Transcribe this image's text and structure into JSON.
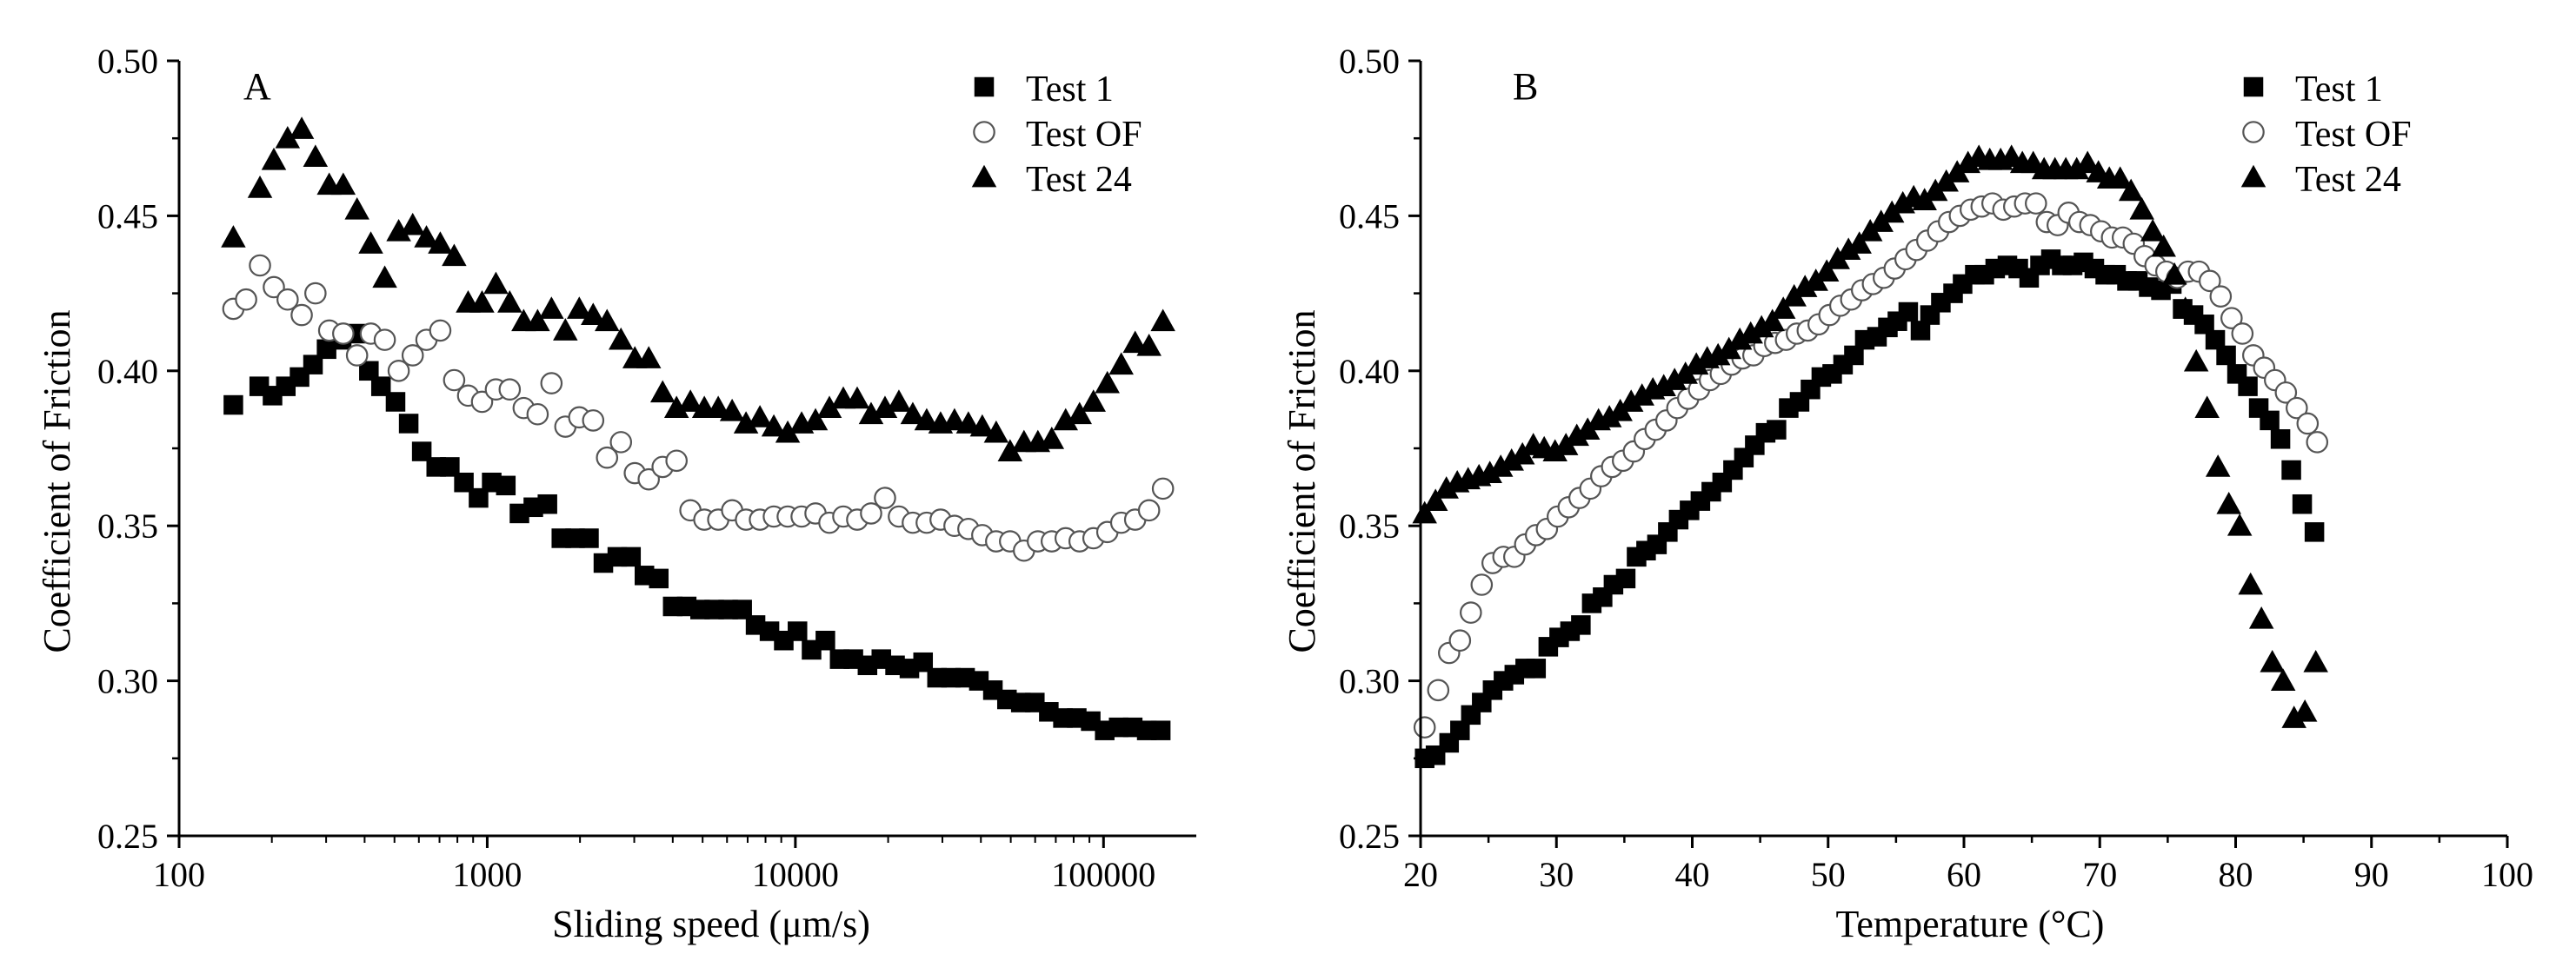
{
  "figure": {
    "panels": [
      "A",
      "B"
    ]
  },
  "chart_data": [
    {
      "panel": "A",
      "type": "scatter",
      "title": "",
      "xlabel": "Sliding speed (μm/s)",
      "ylabel": "Coefficient of Friction",
      "xscale": "log",
      "xlim": [
        100,
        200000
      ],
      "ylim": [
        0.25,
        0.5
      ],
      "xticks": [
        100,
        1000,
        10000,
        100000
      ],
      "xtick_labels": [
        "100",
        "1000",
        "10000",
        "100000"
      ],
      "yticks": [
        0.25,
        0.3,
        0.35,
        0.4,
        0.45,
        0.5
      ],
      "ytick_labels": [
        "0.25",
        "0.30",
        "0.35",
        "0.40",
        "0.45",
        "0.50"
      ],
      "legend_position": "top-right",
      "series": [
        {
          "name": "Test 1",
          "marker": "square-filled",
          "x": [
            150,
            182,
            201,
            222,
            246,
            272,
            301,
            337,
            376,
            413,
            452,
            504,
            556,
            613,
            683,
            756,
            840,
            937,
            1034,
            1149,
            1272,
            1411,
            1568,
            1740,
            1928,
            2139,
            2382,
            2643,
            2928,
            3237,
            3603,
            3999,
            4439,
            4906,
            5452,
            6052,
            6720,
            7426,
            8241,
            9169,
            10158,
            11285,
            12512,
            13922,
            15426,
            17139,
            19007,
            21065,
            23449,
            25970,
            28817,
            31976,
            35549,
            39393,
            43749,
            48599,
            53897,
            59852,
            66445,
            73838,
            81869,
            90891,
            100907,
            111978,
            124374,
            138115,
            153348
          ],
          "y": [
            0.389,
            0.395,
            0.392,
            0.395,
            0.398,
            0.402,
            0.407,
            0.41,
            0.412,
            0.4,
            0.395,
            0.39,
            0.383,
            0.374,
            0.369,
            0.369,
            0.364,
            0.359,
            0.364,
            0.363,
            0.354,
            0.356,
            0.357,
            0.346,
            0.346,
            0.346,
            0.338,
            0.34,
            0.34,
            0.334,
            0.333,
            0.324,
            0.324,
            0.323,
            0.323,
            0.323,
            0.323,
            0.318,
            0.316,
            0.313,
            0.316,
            0.31,
            0.313,
            0.307,
            0.307,
            0.305,
            0.307,
            0.305,
            0.304,
            0.306,
            0.301,
            0.301,
            0.301,
            0.3,
            0.297,
            0.294,
            0.293,
            0.293,
            0.29,
            0.288,
            0.288,
            0.287,
            0.284,
            0.285,
            0.285,
            0.284,
            0.284
          ]
        },
        {
          "name": "Test OF",
          "marker": "circle-open",
          "x": [
            150,
            165,
            183,
            203,
            225,
            250,
            277,
            307,
            341,
            378,
            419,
            465,
            516,
            573,
            635,
            704,
            781,
            867,
            962,
            1067,
            1183,
            1313,
            1457,
            1616,
            1793,
            1989,
            2207,
            2448,
            2716,
            3013,
            3343,
            3709,
            4115,
            4565,
            5065,
            5619,
            6234,
            6916,
            7673,
            8513,
            9444,
            10478,
            11624,
            12896,
            14308,
            15873,
            17610,
            19537,
            21675,
            24048,
            26679,
            29598,
            32837,
            36431,
            40418,
            44841,
            49748,
            55192,
            61232,
            67933,
            75367,
            83614,
            92764,
            102916,
            114178,
            126673,
            140535,
            155914
          ],
          "y": [
            0.42,
            0.423,
            0.434,
            0.427,
            0.423,
            0.418,
            0.425,
            0.413,
            0.412,
            0.405,
            0.412,
            0.41,
            0.4,
            0.405,
            0.41,
            0.413,
            0.397,
            0.392,
            0.39,
            0.394,
            0.394,
            0.388,
            0.386,
            0.396,
            0.382,
            0.385,
            0.384,
            0.372,
            0.377,
            0.367,
            0.365,
            0.369,
            0.371,
            0.355,
            0.352,
            0.352,
            0.355,
            0.352,
            0.352,
            0.353,
            0.353,
            0.353,
            0.354,
            0.351,
            0.353,
            0.352,
            0.354,
            0.359,
            0.353,
            0.351,
            0.351,
            0.352,
            0.35,
            0.349,
            0.347,
            0.345,
            0.345,
            0.342,
            0.345,
            0.345,
            0.346,
            0.345,
            0.346,
            0.348,
            0.351,
            0.352,
            0.355,
            0.362
          ]
        },
        {
          "name": "Test 24",
          "marker": "triangle-filled",
          "x": [
            150,
            183,
            203,
            225,
            250,
            277,
            307,
            341,
            378,
            419,
            465,
            516,
            573,
            635,
            704,
            781,
            867,
            962,
            1067,
            1183,
            1313,
            1457,
            1616,
            1793,
            1989,
            2207,
            2448,
            2716,
            3013,
            3343,
            3709,
            4115,
            4565,
            5065,
            5619,
            6234,
            6916,
            7673,
            8513,
            9444,
            10478,
            11624,
            12896,
            14308,
            15873,
            17610,
            19537,
            21675,
            24048,
            26679,
            29598,
            32837,
            36431,
            40418,
            44841,
            49748,
            55192,
            61232,
            67933,
            75367,
            83614,
            92764,
            102916,
            114178,
            126673,
            140535,
            155914
          ],
          "y": [
            0.443,
            0.459,
            0.468,
            0.475,
            0.478,
            0.469,
            0.46,
            0.46,
            0.452,
            0.441,
            0.43,
            0.445,
            0.447,
            0.443,
            0.441,
            0.437,
            0.422,
            0.422,
            0.428,
            0.422,
            0.416,
            0.416,
            0.42,
            0.413,
            0.42,
            0.418,
            0.416,
            0.41,
            0.404,
            0.404,
            0.393,
            0.388,
            0.39,
            0.388,
            0.388,
            0.387,
            0.383,
            0.385,
            0.382,
            0.38,
            0.383,
            0.384,
            0.388,
            0.391,
            0.391,
            0.386,
            0.388,
            0.39,
            0.386,
            0.384,
            0.383,
            0.384,
            0.383,
            0.382,
            0.38,
            0.374,
            0.377,
            0.377,
            0.378,
            0.384,
            0.386,
            0.39,
            0.396,
            0.402,
            0.409,
            0.408,
            0.416
          ]
        }
      ]
    },
    {
      "panel": "B",
      "type": "scatter",
      "title": "",
      "xlabel": "Temperature (°C)",
      "ylabel": "Coefficient of Friction",
      "xscale": "linear",
      "xlim": [
        20,
        100
      ],
      "ylim": [
        0.25,
        0.5
      ],
      "xticks": [
        20,
        30,
        40,
        50,
        60,
        70,
        80,
        90,
        100
      ],
      "xtick_labels": [
        "20",
        "30",
        "40",
        "50",
        "60",
        "70",
        "80",
        "90",
        "100"
      ],
      "yticks": [
        0.25,
        0.3,
        0.35,
        0.4,
        0.45,
        0.5
      ],
      "ytick_labels": [
        "0.25",
        "0.30",
        "0.35",
        "0.40",
        "0.45",
        "0.50"
      ],
      "legend_position": "top-right",
      "series": [
        {
          "name": "Test 1",
          "marker": "square-filled",
          "x": [
            20.3,
            21.1,
            22.1,
            22.9,
            23.7,
            24.5,
            25.3,
            26.1,
            26.9,
            27.7,
            28.5,
            29.4,
            30.2,
            31.0,
            31.8,
            32.6,
            33.4,
            34.2,
            35.1,
            35.9,
            36.6,
            37.4,
            38.2,
            39.0,
            39.8,
            40.6,
            41.4,
            42.2,
            43.0,
            43.8,
            44.6,
            45.4,
            46.2,
            47.1,
            47.9,
            48.7,
            49.5,
            50.3,
            51.1,
            51.9,
            52.7,
            53.6,
            54.4,
            55.1,
            55.9,
            56.8,
            57.5,
            58.3,
            59.2,
            59.9,
            60.8,
            61.5,
            62.3,
            63.2,
            64.0,
            64.8,
            65.6,
            66.4,
            67.2,
            68.0,
            68.8,
            69.6,
            70.4,
            71.2,
            72.0,
            72.8,
            73.6,
            74.5,
            75.3,
            76.1,
            76.9,
            77.7,
            78.5,
            79.3,
            80.1,
            80.9,
            81.7,
            82.5,
            83.3,
            84.1,
            84.9,
            85.8
          ],
          "y": [
            0.275,
            0.276,
            0.28,
            0.284,
            0.289,
            0.293,
            0.297,
            0.3,
            0.302,
            0.304,
            0.304,
            0.311,
            0.314,
            0.316,
            0.318,
            0.325,
            0.327,
            0.331,
            0.333,
            0.34,
            0.342,
            0.344,
            0.348,
            0.352,
            0.355,
            0.358,
            0.361,
            0.364,
            0.368,
            0.372,
            0.376,
            0.38,
            0.381,
            0.388,
            0.39,
            0.394,
            0.398,
            0.399,
            0.402,
            0.405,
            0.41,
            0.411,
            0.414,
            0.416,
            0.419,
            0.413,
            0.418,
            0.422,
            0.425,
            0.428,
            0.431,
            0.431,
            0.433,
            0.434,
            0.433,
            0.43,
            0.434,
            0.436,
            0.434,
            0.434,
            0.435,
            0.433,
            0.431,
            0.431,
            0.429,
            0.429,
            0.427,
            0.426,
            0.428,
            0.42,
            0.418,
            0.415,
            0.41,
            0.405,
            0.399,
            0.395,
            0.388,
            0.384,
            0.378,
            0.368,
            0.357,
            0.348
          ]
        },
        {
          "name": "Test OF",
          "marker": "circle-open",
          "x": [
            20.3,
            21.3,
            22.1,
            22.9,
            23.7,
            24.5,
            25.3,
            26.1,
            26.9,
            27.7,
            28.5,
            29.3,
            30.1,
            30.9,
            31.7,
            32.5,
            33.3,
            34.1,
            34.9,
            35.7,
            36.5,
            37.3,
            38.1,
            38.9,
            39.7,
            40.5,
            41.3,
            42.1,
            42.9,
            43.7,
            44.5,
            45.3,
            46.1,
            46.9,
            47.7,
            48.5,
            49.3,
            50.1,
            50.9,
            51.7,
            52.5,
            53.3,
            54.1,
            54.9,
            55.7,
            56.5,
            57.3,
            58.1,
            58.9,
            59.7,
            60.5,
            61.3,
            62.1,
            62.9,
            63.7,
            64.5,
            65.3,
            66.1,
            66.9,
            67.7,
            68.5,
            69.3,
            70.1,
            70.9,
            71.7,
            72.5,
            73.3,
            74.1,
            74.9,
            75.7,
            76.5,
            77.3,
            78.1,
            78.9,
            79.7,
            80.5,
            81.3,
            82.1,
            82.9,
            83.7,
            84.5,
            85.3,
            86.0
          ],
          "y": [
            0.285,
            0.297,
            0.309,
            0.313,
            0.322,
            0.331,
            0.338,
            0.34,
            0.34,
            0.344,
            0.347,
            0.349,
            0.353,
            0.356,
            0.359,
            0.362,
            0.366,
            0.369,
            0.371,
            0.374,
            0.378,
            0.381,
            0.384,
            0.388,
            0.391,
            0.394,
            0.397,
            0.399,
            0.402,
            0.404,
            0.405,
            0.408,
            0.409,
            0.41,
            0.412,
            0.413,
            0.415,
            0.418,
            0.421,
            0.423,
            0.426,
            0.428,
            0.43,
            0.433,
            0.436,
            0.439,
            0.442,
            0.445,
            0.448,
            0.45,
            0.452,
            0.453,
            0.454,
            0.452,
            0.453,
            0.454,
            0.454,
            0.448,
            0.447,
            0.451,
            0.448,
            0.447,
            0.445,
            0.443,
            0.443,
            0.441,
            0.437,
            0.434,
            0.432,
            0.43,
            0.432,
            0.432,
            0.429,
            0.424,
            0.417,
            0.412,
            0.405,
            0.401,
            0.397,
            0.393,
            0.388,
            0.383,
            0.377
          ]
        },
        {
          "name": "Test 24",
          "marker": "triangle-filled",
          "x": [
            20.3,
            21.1,
            21.9,
            22.7,
            23.5,
            24.3,
            25.1,
            25.9,
            26.7,
            27.5,
            28.3,
            29.1,
            29.9,
            30.7,
            31.5,
            32.3,
            33.1,
            33.9,
            34.7,
            35.5,
            36.3,
            37.1,
            37.9,
            38.7,
            39.5,
            40.3,
            41.1,
            41.9,
            42.7,
            43.5,
            44.3,
            45.1,
            45.9,
            46.7,
            47.5,
            48.3,
            49.1,
            49.9,
            50.7,
            51.5,
            52.3,
            53.1,
            53.9,
            54.7,
            55.5,
            56.3,
            57.1,
            57.9,
            58.7,
            59.5,
            60.3,
            61.1,
            61.9,
            62.7,
            63.5,
            64.3,
            65.1,
            65.9,
            66.7,
            67.5,
            68.3,
            69.1,
            69.9,
            70.7,
            71.5,
            72.3,
            73.1,
            73.9,
            74.7,
            75.5,
            76.3,
            77.1,
            77.9,
            78.7,
            79.5,
            80.3,
            81.1,
            81.9,
            82.7,
            83.5,
            84.3,
            85.1,
            85.9
          ],
          "y": [
            0.354,
            0.358,
            0.362,
            0.364,
            0.365,
            0.366,
            0.367,
            0.369,
            0.371,
            0.373,
            0.376,
            0.375,
            0.374,
            0.376,
            0.379,
            0.381,
            0.384,
            0.385,
            0.387,
            0.39,
            0.392,
            0.394,
            0.395,
            0.397,
            0.399,
            0.402,
            0.404,
            0.405,
            0.407,
            0.41,
            0.412,
            0.414,
            0.416,
            0.42,
            0.424,
            0.427,
            0.429,
            0.432,
            0.436,
            0.439,
            0.441,
            0.445,
            0.448,
            0.451,
            0.454,
            0.456,
            0.455,
            0.458,
            0.461,
            0.464,
            0.467,
            0.469,
            0.468,
            0.468,
            0.469,
            0.467,
            0.467,
            0.465,
            0.465,
            0.465,
            0.465,
            0.467,
            0.464,
            0.462,
            0.462,
            0.458,
            0.452,
            0.445,
            0.44,
            0.431,
            0.42,
            0.403,
            0.388,
            0.369,
            0.357,
            0.35,
            0.331,
            0.32,
            0.306,
            0.3,
            0.288,
            0.29,
            0.306
          ]
        }
      ]
    }
  ]
}
